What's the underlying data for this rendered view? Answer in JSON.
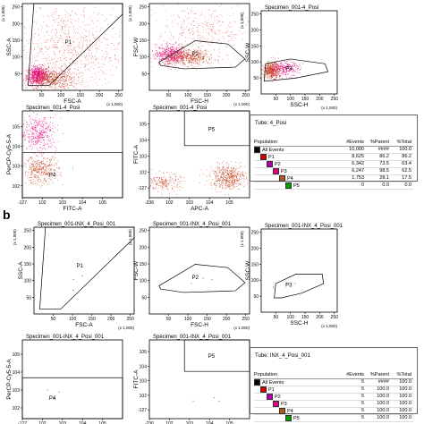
{
  "panel_b_label": "b",
  "colors": {
    "events": "#c43f1a",
    "p1_dense": "#e6007e",
    "orange_dense": "#e46a1f",
    "gate": "#000000"
  },
  "chart_data": [
    {
      "type": "scatter",
      "panel": "a",
      "title": "",
      "xlabel": "FSC-A",
      "ylabel": "SSC-A",
      "x_multiplier": "(x 1,000)",
      "y_multiplier": "(x 1,000)",
      "xticks": [
        "50",
        "100",
        "150",
        "200",
        "250"
      ],
      "yticks": [
        "50",
        "100",
        "150",
        "200",
        "250"
      ],
      "xlim": [
        0,
        262
      ],
      "ylim": [
        0,
        262
      ],
      "gates": [
        {
          "name": "P1",
          "points": [
            [
              15,
              15
            ],
            [
              30,
              262
            ],
            [
              262,
              262
            ],
            [
              262,
              230
            ],
            [
              70,
              15
            ]
          ]
        }
      ],
      "label_positions": [
        {
          "text": "P1",
          "x": 120,
          "y": 140
        }
      ],
      "clusters": [
        {
          "x": 40,
          "y": 45,
          "sx": 14,
          "sy": 14,
          "n": 700,
          "color": "#e6007e"
        },
        {
          "x": 75,
          "y": 35,
          "sx": 30,
          "sy": 15,
          "n": 550,
          "color": "#c43f1a"
        },
        {
          "x": 120,
          "y": 120,
          "sx": 70,
          "sy": 70,
          "n": 900,
          "color": "#e05a5a"
        }
      ]
    },
    {
      "type": "scatter",
      "panel": "a",
      "title": "",
      "xlabel": "FSC-H",
      "ylabel": "FSC-W",
      "x_multiplier": "(x 1,000)",
      "y_multiplier": "(x 1,000)",
      "xticks": [
        "50",
        "100",
        "150",
        "200",
        "250"
      ],
      "yticks": [
        "50",
        "100",
        "150",
        "200",
        "250"
      ],
      "xlim": [
        0,
        262
      ],
      "ylim": [
        0,
        262
      ],
      "gates": [
        {
          "name": "P2",
          "points": [
            [
              25,
              85
            ],
            [
              120,
              150
            ],
            [
              205,
              140
            ],
            [
              250,
              95
            ],
            [
              225,
              70
            ],
            [
              90,
              65
            ],
            [
              30,
              75
            ]
          ]
        }
      ],
      "label_positions": [
        {
          "text": "P2",
          "x": 120,
          "y": 105
        }
      ],
      "clusters": [
        {
          "x": 55,
          "y": 110,
          "sx": 20,
          "sy": 15,
          "n": 500,
          "color": "#e6007e"
        },
        {
          "x": 100,
          "y": 100,
          "sx": 35,
          "sy": 12,
          "n": 500,
          "color": "#c43f1a"
        },
        {
          "x": 140,
          "y": 180,
          "sx": 60,
          "sy": 40,
          "n": 350,
          "color": "#e05a5a"
        }
      ]
    },
    {
      "type": "scatter",
      "panel": "a",
      "title": "Specimen_001-4_Posi",
      "xlabel": "SSC-H",
      "ylabel": "SSC-W",
      "x_multiplier": "(x 1,000)",
      "y_multiplier": "(x 1,000)",
      "xticks": [
        "50",
        "100",
        "150",
        "200",
        "250"
      ],
      "yticks": [
        "50",
        "100",
        "150",
        "200",
        "250"
      ],
      "xlim": [
        0,
        262
      ],
      "ylim": [
        0,
        262
      ],
      "gates": [
        {
          "name": "P3",
          "points": [
            [
              10,
              40
            ],
            [
              15,
              95
            ],
            [
              100,
              110
            ],
            [
              220,
              95
            ],
            [
              230,
              70
            ],
            [
              120,
              50
            ]
          ]
        }
      ],
      "label_positions": [
        {
          "text": "P3",
          "x": 95,
          "y": 75
        }
      ],
      "clusters": [
        {
          "x": 35,
          "y": 75,
          "sx": 14,
          "sy": 12,
          "n": 450,
          "color": "#c43f1a"
        },
        {
          "x": 75,
          "y": 80,
          "sx": 28,
          "sy": 12,
          "n": 300,
          "color": "#e6007e"
        }
      ]
    },
    {
      "type": "scatter",
      "panel": "a",
      "title": "Specimen_001-4_Posi",
      "xlabel": "FITC-A",
      "ylabel": "PerCP-Cy5-5-A",
      "xticks": [
        "-127",
        "10^2",
        "10^3",
        "10^4",
        "10^5"
      ],
      "yticks": [
        "10^2",
        "10^3",
        "10^4",
        "10^5"
      ],
      "xlim": [
        0,
        100
      ],
      "ylim": [
        0,
        100
      ],
      "gates": [
        {
          "name": "P4",
          "points": [
            [
              0,
              0
            ],
            [
              100,
              0
            ],
            [
              100,
              52
            ],
            [
              0,
              52
            ]
          ]
        }
      ],
      "label_positions": [
        {
          "text": "P4",
          "x": 30,
          "y": 24
        }
      ],
      "clusters": [
        {
          "x": 16,
          "y": 75,
          "sx": 9,
          "sy": 10,
          "n": 400,
          "color": "#e6007e"
        },
        {
          "x": 18,
          "y": 32,
          "sx": 9,
          "sy": 8,
          "n": 400,
          "color": "#c43f1a"
        }
      ]
    },
    {
      "type": "scatter",
      "panel": "a",
      "title": "Specimen_001-4_Posi",
      "xlabel": "APC-A",
      "ylabel": "FITC-A",
      "xticks": [
        "-236",
        "10^2",
        "10^3",
        "10^4",
        "10^5"
      ],
      "yticks": [
        "-127",
        "10^2",
        "10^3",
        "10^4",
        "10^5"
      ],
      "xlim": [
        0,
        100
      ],
      "ylim": [
        0,
        100
      ],
      "gates": [
        {
          "name": "P5",
          "points": [
            [
              35,
              60
            ],
            [
              100,
              60
            ],
            [
              100,
              100
            ],
            [
              35,
              100
            ]
          ]
        }
      ],
      "label_positions": [
        {
          "text": "P5",
          "x": 62,
          "y": 77
        }
      ],
      "clusters": [
        {
          "x": 78,
          "y": 24,
          "sx": 9,
          "sy": 7,
          "n": 500,
          "color": "#c43f1a"
        },
        {
          "x": 15,
          "y": 18,
          "sx": 8,
          "sy": 5,
          "n": 200,
          "color": "#c43f1a"
        }
      ]
    },
    {
      "type": "scatter",
      "panel": "b",
      "title": "Specimen_001-INX_4_Posi_001",
      "xlabel": "FSC-A",
      "ylabel": "SSC-A",
      "x_multiplier": "(x 1,000)",
      "y_multiplier": "(x 1,000)",
      "xticks": [
        "50",
        "100",
        "150",
        "200",
        "250"
      ],
      "yticks": [
        "50",
        "100",
        "150",
        "200",
        "250"
      ],
      "xlim": [
        0,
        262
      ],
      "ylim": [
        0,
        262
      ],
      "gates": [
        {
          "name": "P1",
          "points": [
            [
              15,
              15
            ],
            [
              30,
              262
            ],
            [
              262,
              262
            ],
            [
              262,
              230
            ],
            [
              70,
              15
            ]
          ]
        }
      ],
      "label_positions": [
        {
          "text": "P1",
          "x": 120,
          "y": 140
        }
      ],
      "clusters": [
        {
          "x": 90,
          "y": 70,
          "sx": 50,
          "sy": 50,
          "n": 4,
          "color": "#c43f1a"
        }
      ]
    },
    {
      "type": "scatter",
      "panel": "b",
      "title": "Specimen_001-INX_4_Posi_001",
      "xlabel": "FSC-H",
      "ylabel": "FSC-W",
      "x_multiplier": "(x 1,000)",
      "y_multiplier": "(x 1,000)",
      "xticks": [
        "50",
        "100",
        "150",
        "200",
        "250"
      ],
      "yticks": [
        "50",
        "100",
        "150",
        "200",
        "250"
      ],
      "xlim": [
        0,
        262
      ],
      "ylim": [
        0,
        262
      ],
      "gates": [
        {
          "name": "P2",
          "points": [
            [
              25,
              85
            ],
            [
              120,
              150
            ],
            [
              205,
              140
            ],
            [
              250,
              95
            ],
            [
              225,
              70
            ],
            [
              90,
              65
            ],
            [
              30,
              75
            ]
          ]
        }
      ],
      "label_positions": [
        {
          "text": "P2",
          "x": 120,
          "y": 105
        }
      ],
      "clusters": [
        {
          "x": 110,
          "y": 100,
          "sx": 30,
          "sy": 10,
          "n": 3,
          "color": "#c43f1a"
        }
      ]
    },
    {
      "type": "scatter",
      "panel": "b",
      "title": "Specimen_001-INX_4_Posi_001",
      "xlabel": "SSC-H",
      "ylabel": "SSC-W",
      "x_multiplier": "(x 1,000)",
      "y_multiplier": "(x 1,000)",
      "xticks": [
        "50",
        "100",
        "150",
        "200",
        "250"
      ],
      "yticks": [
        "50",
        "100",
        "150",
        "200",
        "250"
      ],
      "xlim": [
        0,
        262
      ],
      "ylim": [
        0,
        262
      ],
      "gates": [
        {
          "name": "P3",
          "points": [
            [
              45,
              45
            ],
            [
              50,
              90
            ],
            [
              120,
              120
            ],
            [
              210,
              120
            ],
            [
              215,
              90
            ],
            [
              140,
              60
            ],
            [
              70,
              45
            ]
          ]
        }
      ],
      "label_positions": [
        {
          "text": "P3",
          "x": 95,
          "y": 80
        }
      ],
      "clusters": [
        {
          "x": 110,
          "y": 85,
          "sx": 30,
          "sy": 10,
          "n": 3,
          "color": "#c43f1a"
        }
      ]
    },
    {
      "type": "scatter",
      "panel": "b",
      "title": "Specimen_001-INX_4_Posi_001",
      "xlabel": "FITC-A",
      "ylabel": "PerCP-Cy5-5-A",
      "xticks": [
        "-127",
        "10^2",
        "10^3",
        "10^4",
        "10^5"
      ],
      "yticks": [
        "10^2",
        "10^3",
        "10^4",
        "10^5"
      ],
      "xlim": [
        0,
        100
      ],
      "ylim": [
        0,
        100
      ],
      "gates": [
        {
          "name": "P4",
          "points": [
            [
              0,
              0
            ],
            [
              100,
              0
            ],
            [
              100,
              52
            ],
            [
              0,
              52
            ]
          ]
        }
      ],
      "label_positions": [
        {
          "text": "P4",
          "x": 30,
          "y": 24
        }
      ],
      "clusters": [
        {
          "x": 30,
          "y": 30,
          "sx": 10,
          "sy": 8,
          "n": 3,
          "color": "#c43f1a"
        }
      ]
    },
    {
      "type": "scatter",
      "panel": "b",
      "title": "Specimen_001-INX_4_Posi_001",
      "xlabel": "APC-A",
      "ylabel": "FITC-A",
      "xticks": [
        "-236",
        "10^2",
        "10^3",
        "10^4",
        "10^5"
      ],
      "yticks": [
        "-127",
        "10^2",
        "10^3",
        "10^4",
        "10^5"
      ],
      "xlim": [
        0,
        100
      ],
      "ylim": [
        0,
        100
      ],
      "gates": [
        {
          "name": "P5",
          "points": [
            [
              35,
              60
            ],
            [
              100,
              60
            ],
            [
              100,
              100
            ],
            [
              35,
              100
            ]
          ]
        }
      ],
      "label_positions": [
        {
          "text": "P5",
          "x": 62,
          "y": 77
        }
      ],
      "clusters": [
        {
          "x": 70,
          "y": 20,
          "sx": 12,
          "sy": 8,
          "n": 3,
          "color": "#c43f1a"
        }
      ]
    },
    {
      "type": "table",
      "panel": "a",
      "tube": "Tube:  4_Posi",
      "columns": [
        "Population",
        "#Events",
        "%Parent",
        "%Total"
      ],
      "rows": [
        {
          "population": "All Events",
          "events": "10,000",
          "parent": "####",
          "total": "100.0",
          "color": "#000000",
          "indent": 0
        },
        {
          "population": "P1",
          "events": "8,625",
          "parent": "86.2",
          "total": "86.2",
          "color": "#d40000",
          "indent": 1
        },
        {
          "population": "P2",
          "events": "6,342",
          "parent": "73.5",
          "total": "63.4",
          "color": "#b000b0",
          "indent": 2
        },
        {
          "population": "P3",
          "events": "6,247",
          "parent": "98.5",
          "total": "62.5",
          "color": "#e6007e",
          "indent": 3
        },
        {
          "population": "P4",
          "events": "1,753",
          "parent": "28.1",
          "total": "17.5",
          "color": "#b05a1a",
          "indent": 4
        },
        {
          "population": "P5",
          "events": "0",
          "parent": "0.0",
          "total": "0.0",
          "color": "#00a000",
          "indent": 5
        }
      ]
    },
    {
      "type": "table",
      "panel": "b",
      "tube": "Tube:  INX_4_Posi_001",
      "columns": [
        "Population",
        "#Events",
        "%Parent",
        "%Total"
      ],
      "rows": [
        {
          "population": "All Events",
          "events": "5",
          "parent": "####",
          "total": "100.0",
          "color": "#000000",
          "indent": 0
        },
        {
          "population": "P1",
          "events": "5",
          "parent": "100.0",
          "total": "100.0",
          "color": "#d40000",
          "indent": 1
        },
        {
          "population": "P2",
          "events": "5",
          "parent": "100.0",
          "total": "100.0",
          "color": "#b000b0",
          "indent": 2
        },
        {
          "population": "P3",
          "events": "5",
          "parent": "100.0",
          "total": "100.0",
          "color": "#e6007e",
          "indent": 3
        },
        {
          "population": "P4",
          "events": "5",
          "parent": "100.0",
          "total": "100.0",
          "color": "#b05a1a",
          "indent": 4
        },
        {
          "population": "P5",
          "events": "5",
          "parent": "100.0",
          "total": "100.0",
          "color": "#00a000",
          "indent": 5
        }
      ]
    }
  ]
}
